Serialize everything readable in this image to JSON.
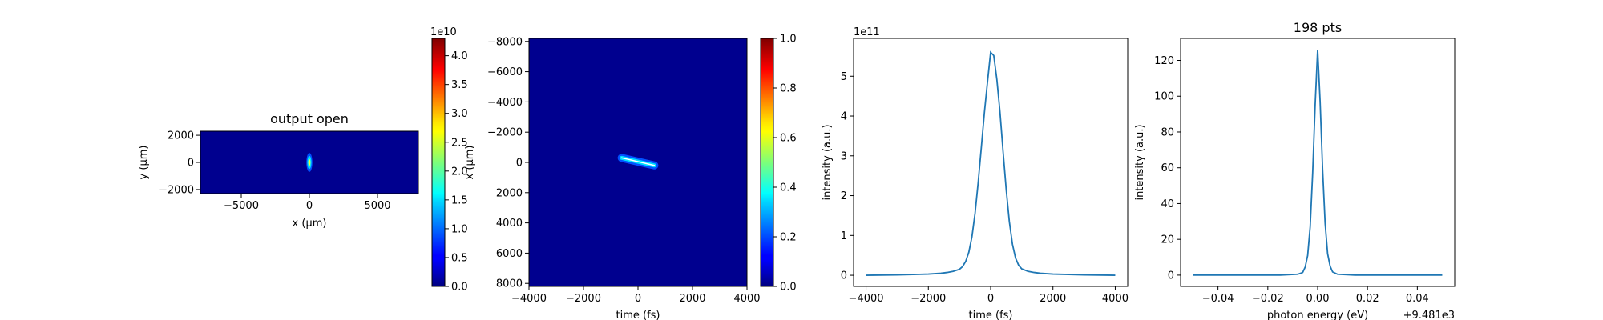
{
  "chart_data": [
    {
      "type": "heatmap",
      "title": "output open",
      "xlabel": "x (μm)",
      "ylabel": "y (μm)",
      "xlim": [
        -8000,
        8000
      ],
      "ylim": [
        2300,
        -2300
      ],
      "xticks": [
        "−5000",
        "0",
        "5000"
      ],
      "yticks": [
        "−2000",
        "0",
        "2000"
      ],
      "colormap": "jet",
      "colorbar": {
        "range": [
          0,
          43000000000
        ],
        "ticks": [
          "0.0",
          "0.5",
          "1.0",
          "1.5",
          "2.0",
          "2.5",
          "3.0",
          "3.5",
          "4.0"
        ],
        "offset": "1e10"
      },
      "background_color": "#00008f",
      "feature": {
        "x_center": 0,
        "y_center": 0,
        "x_halfwidth": 220,
        "y_halfwidth": 700
      }
    },
    {
      "type": "heatmap",
      "title": "",
      "xlabel": "time (fs)",
      "ylabel": "x (μm)",
      "xlim": [
        -4000,
        4000
      ],
      "ylim": [
        -8200,
        8200
      ],
      "xticks": [
        "−4000",
        "−2000",
        "0",
        "2000",
        "4000"
      ],
      "yticks": [
        "−8000",
        "−6000",
        "−4000",
        "−2000",
        "0",
        "2000",
        "4000",
        "6000",
        "8000"
      ],
      "colormap": "jet",
      "colorbar": {
        "range": [
          0,
          1
        ],
        "ticks": [
          "0.0",
          "0.2",
          "0.4",
          "0.6",
          "0.8",
          "1.0"
        ]
      },
      "background_color": "#00008f",
      "feature": {
        "t_start": -600,
        "x_start": -300,
        "t_end": 600,
        "x_end": 200
      }
    },
    {
      "type": "line",
      "title": "",
      "xlabel": "time (fs)",
      "ylabel": "intensity (a.u.)",
      "offset_text": "1e11",
      "xlim": [
        -4400,
        4400
      ],
      "ylim": [
        -0.28,
        5.95
      ],
      "xticks": [
        "−4000",
        "−2000",
        "0",
        "2000",
        "4000"
      ],
      "yticks": [
        "0",
        "1",
        "2",
        "3",
        "4",
        "5"
      ],
      "color": "#1f77b4",
      "series": [
        {
          "x": [
            -4000,
            -3000,
            -2000,
            -1600,
            -1400,
            -1200,
            -1000,
            -900,
            -800,
            -700,
            -600,
            -500,
            -400,
            -300,
            -200,
            -100,
            0,
            100,
            200,
            300,
            400,
            500,
            600,
            700,
            800,
            900,
            1000,
            1200,
            1400,
            1600,
            2000,
            3000,
            4000
          ],
          "values": [
            0.0,
            0.01,
            0.03,
            0.05,
            0.07,
            0.1,
            0.15,
            0.22,
            0.35,
            0.58,
            0.97,
            1.56,
            2.33,
            3.2,
            4.09,
            4.86,
            5.6,
            5.52,
            4.92,
            4.1,
            3.1,
            2.15,
            1.35,
            0.78,
            0.43,
            0.25,
            0.16,
            0.1,
            0.07,
            0.05,
            0.03,
            0.01,
            0.0
          ]
        }
      ]
    },
    {
      "type": "line",
      "title": "198 pts",
      "xlabel": "photon energy (eV)",
      "ylabel": "intensity (a.u.)",
      "offset_text": "+9.481e3",
      "xlim": [
        -0.055,
        0.055
      ],
      "ylim": [
        -6.3,
        132.3
      ],
      "xticks": [
        "−0.04",
        "−0.02",
        "0.00",
        "0.02",
        "0.04"
      ],
      "yticks": [
        "0",
        "20",
        "40",
        "60",
        "80",
        "100",
        "120"
      ],
      "color": "#1f77b4",
      "series": [
        {
          "x": [
            -0.05,
            -0.03,
            -0.015,
            -0.008,
            -0.006,
            -0.005,
            -0.004,
            -0.003,
            -0.002,
            -0.001,
            0.0,
            0.001,
            0.002,
            0.003,
            0.004,
            0.005,
            0.006,
            0.008,
            0.015,
            0.03,
            0.05
          ],
          "values": [
            0,
            0,
            0,
            0.5,
            1.5,
            4.5,
            11,
            27,
            57,
            95,
            126,
            97,
            59,
            29,
            12,
            5,
            1.8,
            0.5,
            0,
            0,
            0
          ]
        }
      ]
    }
  ]
}
